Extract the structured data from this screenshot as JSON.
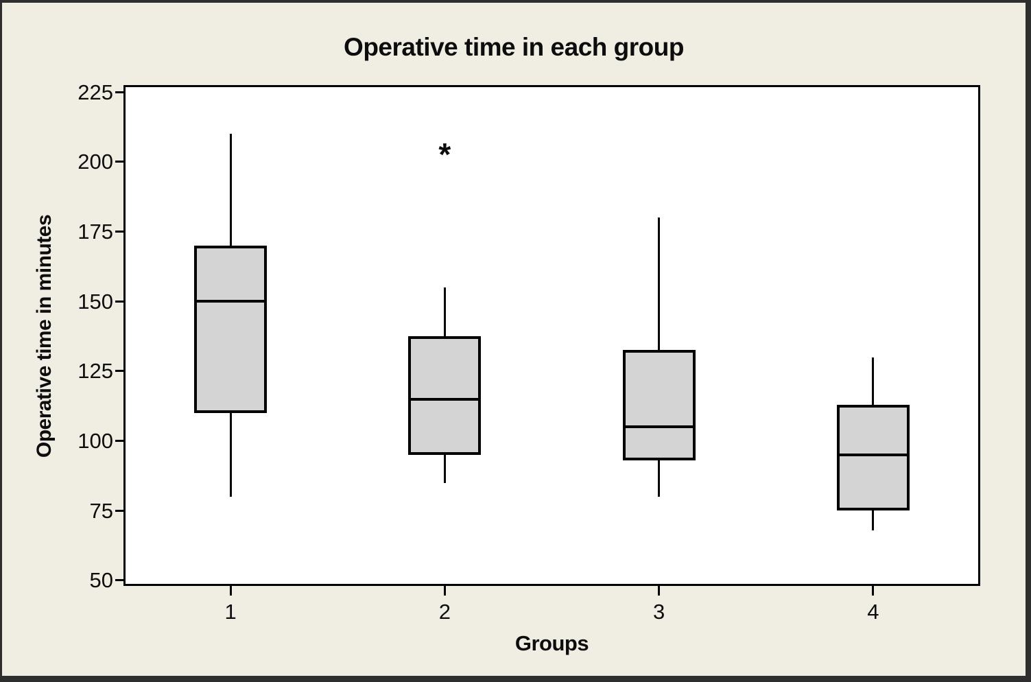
{
  "figure": {
    "background_color": "#f0ede2",
    "frame_color": "#2e2e2e",
    "plot_border_color": "#000000"
  },
  "chart_data": {
    "type": "boxplot",
    "title": "Operative time in each group",
    "xlabel": "Groups",
    "ylabel": "Operative time in minutes",
    "ylim": [
      48,
      227.5
    ],
    "yticks": [
      50,
      75,
      100,
      125,
      150,
      175,
      200,
      225
    ],
    "grid": false,
    "legend": "none",
    "plot_background": "#ffffff",
    "box_fill": "#d4d4d4",
    "line_color": "#000000",
    "outlier_symbol": "*",
    "groups": [
      {
        "label": "1",
        "whisker_low": 80,
        "q1": 110,
        "median": 150,
        "q3": 170,
        "whisker_high": 210,
        "outliers": []
      },
      {
        "label": "2",
        "whisker_low": 85,
        "q1": 95,
        "median": 115,
        "q3": 137.5,
        "whisker_high": 155,
        "outliers": [
          205
        ]
      },
      {
        "label": "3",
        "whisker_low": 80,
        "q1": 93,
        "median": 105,
        "q3": 132.5,
        "whisker_high": 180,
        "outliers": []
      },
      {
        "label": "4",
        "whisker_low": 68,
        "q1": 75,
        "median": 95,
        "q3": 113,
        "whisker_high": 130,
        "outliers": []
      }
    ]
  }
}
